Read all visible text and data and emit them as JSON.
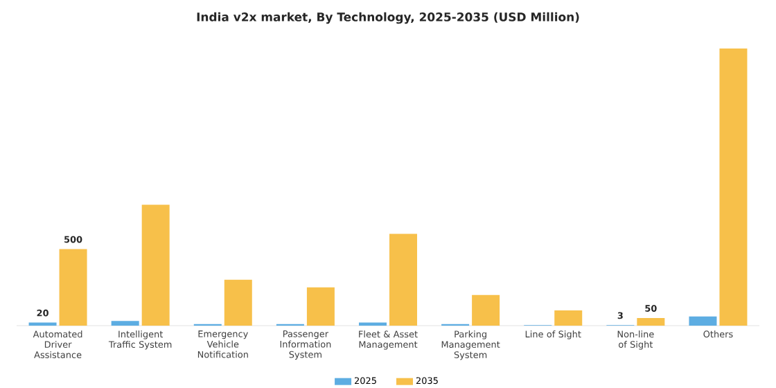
{
  "chart_data": {
    "type": "bar",
    "title": "India v2x market, By Technology, 2025-2035 (USD Million)",
    "categories": [
      "Automated Driver Assistance",
      "Intelligent Traffic System",
      "Emergency Vehicle Notification",
      "Passenger Information System",
      "Fleet & Asset Management",
      "Parking Management System",
      "Line of Sight",
      "Non-line of Sight",
      "Others"
    ],
    "series": [
      {
        "name": "2025",
        "color": "#5dade2",
        "values": [
          20,
          30,
          10,
          10,
          20,
          10,
          3,
          3,
          60
        ],
        "value_labels": [
          "20",
          null,
          null,
          null,
          null,
          null,
          null,
          "3",
          null
        ]
      },
      {
        "name": "2035",
        "color": "#f7c04a",
        "values": [
          500,
          790,
          300,
          250,
          600,
          200,
          100,
          50,
          1810
        ],
        "value_labels": [
          "500",
          null,
          null,
          null,
          null,
          null,
          null,
          "50",
          null
        ]
      }
    ],
    "tick_labels": "x",
    "legend": "bottom"
  }
}
